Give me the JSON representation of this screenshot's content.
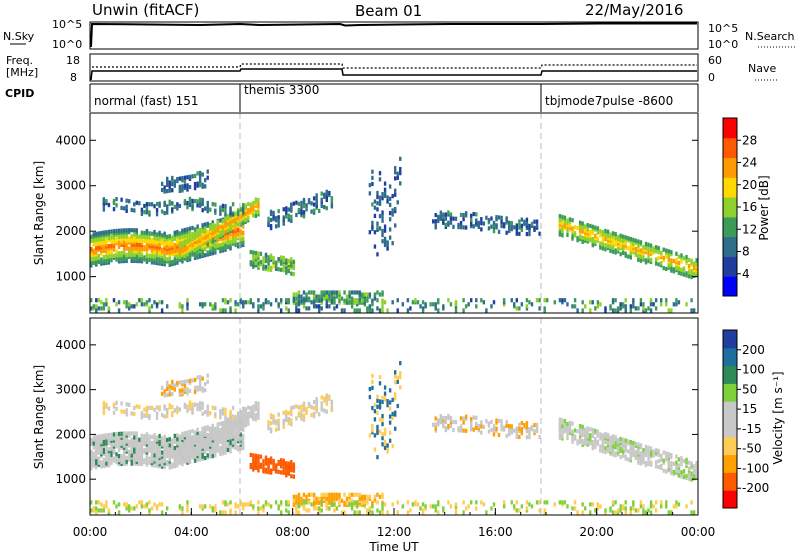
{
  "header": {
    "station": "Unwin (fitACF)",
    "beam": "Beam 01",
    "date": "22/May/2016"
  },
  "strip_labels": {
    "nsky": "N.Sky",
    "freq_line1": "Freq.",
    "freq_line2": "[MHz]",
    "cpid": "CPID",
    "nsearch": "N.Search",
    "nave": "Nave",
    "nsky_ticks": [
      "10^5",
      "10^0"
    ],
    "nsearch_ticks": [
      "10^5",
      "10^0"
    ],
    "freq_ticks": [
      "18",
      "8"
    ],
    "nave_ticks": [
      "60",
      "0"
    ]
  },
  "cpid_modes": [
    {
      "name": "normal (fast) 151",
      "start": 0,
      "end": 6
    },
    {
      "name": "themis 3300",
      "start": 6,
      "end": 18
    },
    {
      "name": "tbjmode7pulse -8600",
      "start": 18,
      "end": 24
    }
  ],
  "colors": {
    "power": [
      "#0000ff",
      "#1f3ea0",
      "#2e6e8a",
      "#3d9b5a",
      "#8fd12c",
      "#ffd800",
      "#ff9a00",
      "#ff5a00",
      "#ff0000"
    ],
    "velocity": [
      "#ff0000",
      "#ff5a00",
      "#ffa000",
      "#ffcc55",
      "#c8c8c8",
      "#c8c8c8",
      "#7fd13b",
      "#2e8b57",
      "#1e6e9e",
      "#1f3ea0"
    ]
  },
  "chart_data": [
    {
      "type": "heatmap",
      "name": "power",
      "ylabel": "Slant Range [km]",
      "ylim": [
        200,
        4600
      ],
      "yticks": [
        1000,
        2000,
        3000,
        4000
      ],
      "xlim": [
        0,
        24
      ],
      "colorbar_label": "Power [dB]",
      "colorbar_ticks": [
        "28",
        "24",
        "20",
        "16",
        "12",
        "8",
        "4"
      ],
      "colorbar_range": [
        0,
        32
      ]
    },
    {
      "type": "heatmap",
      "name": "velocity",
      "ylabel": "Slant Range [km]",
      "ylim": [
        200,
        4600
      ],
      "yticks": [
        1000,
        2000,
        3000,
        4000
      ],
      "xlim": [
        0,
        24
      ],
      "xlabel": "Time UT",
      "xticks": [
        "00:00",
        "04:00",
        "08:00",
        "12:00",
        "16:00",
        "20:00",
        "00:00"
      ],
      "colorbar_label": "Velocity [m s⁻¹]",
      "colorbar_ticks": [
        "200",
        "100",
        "50",
        "15",
        "-15",
        "-50",
        "-100",
        "-200"
      ]
    }
  ]
}
